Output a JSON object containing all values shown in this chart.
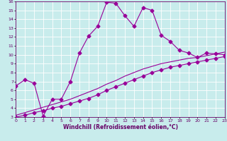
{
  "xlabel": "Windchill (Refroidissement éolien,°C)",
  "xlim": [
    0,
    23
  ],
  "ylim": [
    3,
    16
  ],
  "xticks": [
    0,
    1,
    2,
    3,
    4,
    5,
    6,
    7,
    8,
    9,
    10,
    11,
    12,
    13,
    14,
    15,
    16,
    17,
    18,
    19,
    20,
    21,
    22,
    23
  ],
  "yticks": [
    3,
    4,
    5,
    6,
    7,
    8,
    9,
    10,
    11,
    12,
    13,
    14,
    15,
    16
  ],
  "bg_color": "#c8ecec",
  "line_color": "#990099",
  "grid_color": "#ffffff",
  "curve_main_x": [
    0,
    1,
    2,
    3,
    4,
    5,
    6,
    7,
    8,
    9,
    10,
    11,
    12,
    13,
    14,
    15,
    16,
    17,
    18,
    19,
    20,
    21,
    22,
    23
  ],
  "curve_main_y": [
    6.5,
    7.2,
    6.8,
    3.1,
    5.0,
    5.0,
    7.0,
    10.2,
    12.1,
    13.2,
    15.9,
    15.8,
    14.4,
    13.2,
    15.3,
    15.0,
    12.2,
    11.5,
    10.5,
    10.2,
    9.7,
    10.2,
    10.1,
    10.0
  ],
  "curve_lo_x": [
    0,
    1,
    2,
    3,
    4,
    5,
    6,
    7,
    8,
    9,
    10,
    11,
    12,
    13,
    14,
    15,
    16,
    17,
    18,
    19,
    20,
    21,
    22,
    23
  ],
  "curve_lo_y": [
    3.0,
    3.2,
    3.5,
    3.7,
    4.0,
    4.2,
    4.5,
    4.8,
    5.1,
    5.5,
    6.0,
    6.4,
    6.8,
    7.2,
    7.6,
    8.0,
    8.3,
    8.6,
    8.8,
    9.0,
    9.2,
    9.4,
    9.6,
    9.8
  ],
  "curve_hi_x": [
    0,
    1,
    2,
    3,
    4,
    5,
    6,
    7,
    8,
    9,
    10,
    11,
    12,
    13,
    14,
    15,
    16,
    17,
    18,
    19,
    20,
    21,
    22,
    23
  ],
  "curve_hi_y": [
    3.2,
    3.5,
    3.8,
    4.1,
    4.4,
    4.7,
    5.0,
    5.4,
    5.8,
    6.2,
    6.7,
    7.1,
    7.6,
    8.0,
    8.4,
    8.7,
    9.0,
    9.2,
    9.4,
    9.6,
    9.7,
    9.9,
    10.1,
    10.3
  ],
  "markersize": 2.5,
  "linewidth": 0.8,
  "tick_fontsize": 4.5,
  "xlabel_fontsize": 5.5,
  "axis_label_color": "#660066"
}
